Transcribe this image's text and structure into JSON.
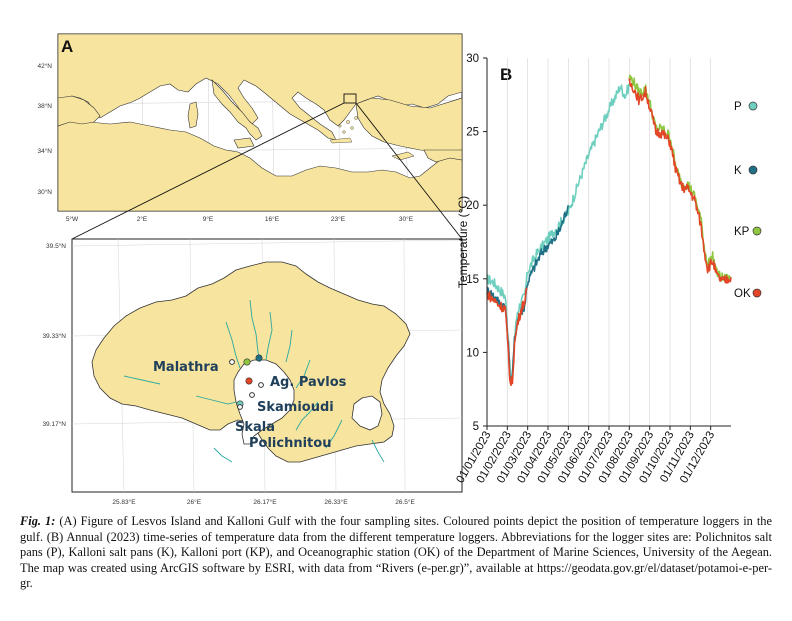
{
  "panel_a": {
    "label": "A",
    "inset_lat_ticks": [
      "42°N",
      "38°N",
      "34°N",
      "30°N"
    ],
    "inset_lon_ticks": [
      "5°W",
      "2°E",
      "9°E",
      "16°E",
      "23°E",
      "30°E"
    ],
    "main_lat_ticks": [
      "39.5°N",
      "39.33°N",
      "39.17°N"
    ],
    "main_lon_ticks": [
      "25.83°E",
      "26°E",
      "26.17°E",
      "26.33°E",
      "26.5°E"
    ],
    "sites": {
      "malathra": "Malathra",
      "ag_pavlos": "Ag. Pavlos",
      "skamioudi": "Skamioudi",
      "skala_1": "Skala",
      "skala_2": "Polichnitou"
    },
    "colors": {
      "land": "#f7e49e",
      "sea": "#ffffff",
      "coast": "#333333",
      "river": "#2aa8a0"
    }
  },
  "chart_data": {
    "type": "line",
    "label": "B",
    "title": "",
    "xlabel": "",
    "ylabel": "Temperature (°C)",
    "ylim": [
      5,
      30
    ],
    "yticks": [
      5,
      10,
      15,
      20,
      25,
      30
    ],
    "xticks": [
      "01/01/2023",
      "01/02/2023",
      "01/03/2023",
      "01/04/2023",
      "01/05/2023",
      "01/06/2023",
      "01/07/2023",
      "01/08/2023",
      "01/09/2023",
      "01/10/2023",
      "01/11/2023",
      "01/12/2023"
    ],
    "x_range_months": [
      0,
      12
    ],
    "grid": "vertical",
    "legend_position": "right",
    "series": [
      {
        "name": "P",
        "color": "#6fcfbf",
        "points": [
          [
            0,
            15
          ],
          [
            0.3,
            14.8
          ],
          [
            0.6,
            14.3
          ],
          [
            0.9,
            13.8
          ],
          [
            1.05,
            11
          ],
          [
            1.15,
            8.2
          ],
          [
            1.25,
            8.5
          ],
          [
            1.35,
            11
          ],
          [
            1.5,
            12.8
          ],
          [
            1.7,
            13.5
          ],
          [
            1.85,
            13.8
          ],
          [
            2,
            15.5
          ],
          [
            2.4,
            16.6
          ],
          [
            2.6,
            17
          ],
          [
            4.0,
            19.5
          ],
          [
            4.2,
            20.3
          ],
          [
            4.5,
            21.5
          ],
          [
            5,
            23.4
          ],
          [
            5.5,
            25
          ],
          [
            6,
            26.5
          ],
          [
            6.4,
            27.6
          ],
          [
            6.55,
            28.1
          ],
          [
            6.8,
            27.4
          ],
          [
            7.0,
            28.2
          ]
        ]
      },
      {
        "name": "K",
        "color": "#1f6f85",
        "points": [
          [
            0,
            14.2
          ],
          [
            0.3,
            13.9
          ],
          [
            0.6,
            13.4
          ],
          [
            0.9,
            13.1
          ],
          [
            1.05,
            10.5
          ],
          [
            1.15,
            8.0
          ],
          [
            1.25,
            8.3
          ],
          [
            1.35,
            10.8
          ],
          [
            1.5,
            12.2
          ],
          [
            1.7,
            12.8
          ],
          [
            1.85,
            13.2
          ],
          [
            2,
            14.8
          ],
          [
            2.4,
            16.0
          ],
          [
            2.7,
            16.8
          ],
          [
            3.0,
            17.3
          ],
          [
            3.3,
            17.6
          ],
          [
            3.6,
            18.4
          ],
          [
            4.0,
            20.0
          ]
        ]
      },
      {
        "name": "KP",
        "color": "#8ec73f",
        "points": [
          [
            7.0,
            28.7
          ],
          [
            7.2,
            28.4
          ],
          [
            7.5,
            27.6
          ],
          [
            7.8,
            27.9
          ],
          [
            8.0,
            27.0
          ],
          [
            8.3,
            25.2
          ],
          [
            8.6,
            25.2
          ],
          [
            9,
            24.7
          ],
          [
            9.3,
            22.5
          ],
          [
            9.6,
            21.4
          ],
          [
            9.9,
            21.4
          ],
          [
            10.2,
            20.6
          ],
          [
            10.5,
            19.2
          ],
          [
            10.7,
            17.0
          ],
          [
            10.85,
            16.0
          ],
          [
            11.1,
            16.5
          ],
          [
            11.3,
            15.4
          ],
          [
            11.6,
            15.0
          ],
          [
            12,
            15.0
          ]
        ]
      },
      {
        "name": "OK",
        "color": "#e34527",
        "points": [
          [
            0,
            14.0
          ],
          [
            0.3,
            13.6
          ],
          [
            0.6,
            13.2
          ],
          [
            0.9,
            13.0
          ],
          [
            1.05,
            10.0
          ],
          [
            1.15,
            7.8
          ],
          [
            1.25,
            8.1
          ],
          [
            1.35,
            10.5
          ],
          [
            1.5,
            12.0
          ],
          [
            1.7,
            13.0
          ],
          [
            1.85,
            13.5
          ],
          [
            2,
            14.4
          ],
          [
            7.0,
            28.3
          ],
          [
            7.2,
            28.0
          ],
          [
            7.5,
            27.1
          ],
          [
            7.8,
            27.7
          ],
          [
            8.0,
            26.7
          ],
          [
            8.3,
            25.0
          ],
          [
            8.6,
            24.9
          ],
          [
            9,
            24.3
          ],
          [
            9.3,
            22.3
          ],
          [
            9.6,
            21.2
          ],
          [
            9.9,
            21.1
          ],
          [
            10.2,
            20.4
          ],
          [
            10.5,
            18.8
          ],
          [
            10.7,
            16.8
          ],
          [
            10.85,
            15.7
          ],
          [
            11.1,
            16.2
          ],
          [
            11.3,
            15.2
          ],
          [
            11.6,
            14.8
          ],
          [
            12,
            15.1
          ]
        ]
      }
    ]
  },
  "caption": {
    "label": "Fig. 1:",
    "text": " (A) Figure of Lesvos Island and Kalloni Gulf with the four sampling sites. Coloured points depict the position of temperature loggers in the gulf. (B) Annual (2023) time-series of temperature data from the different temperature loggers. Abbreviations for the logger sites are: Polichnitos salt pans (P), Kalloni salt pans (K), Kalloni port (KP), and Oceanographic station (OK) of the Department of Marine Sciences, University of the Aegean. The map was created using ArcGIS software by ESRI, with data from “Rivers (e-per.gr)”, available at https://geodata.gov.gr/el/dataset/potamoi-e-per-gr."
  }
}
